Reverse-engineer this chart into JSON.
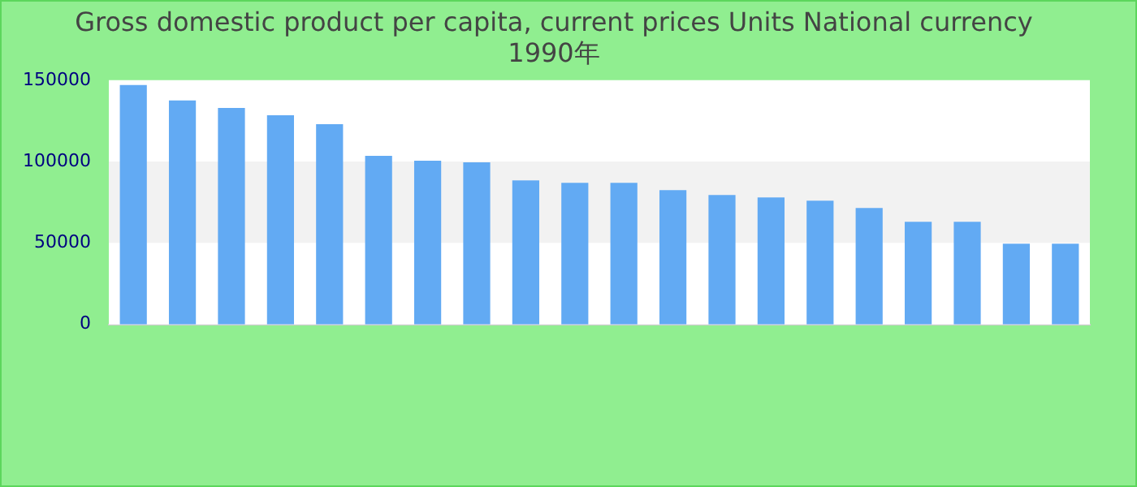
{
  "chart_data": {
    "type": "bar",
    "title": "Gross domestic product per capita, current prices Units National currency",
    "subtitle": "1990年",
    "categories": [
      null,
      null,
      null,
      null,
      null,
      null,
      null,
      null,
      null,
      null,
      null,
      null,
      null,
      null,
      null,
      null,
      null,
      null,
      null,
      null
    ],
    "values": [
      147000,
      137500,
      133000,
      128500,
      123000,
      103500,
      100500,
      99500,
      88500,
      87000,
      87000,
      82500,
      79500,
      78000,
      76000,
      71500,
      63000,
      63000,
      49500,
      49500
    ],
    "color": "#62aaf3",
    "ylim": [
      0,
      150000
    ],
    "yticks": [
      0,
      50000,
      100000,
      150000
    ],
    "bands": [
      {
        "axis": "y",
        "from": 50000,
        "to": 100000,
        "color": "#f2f2f2"
      }
    ],
    "legend": false
  }
}
